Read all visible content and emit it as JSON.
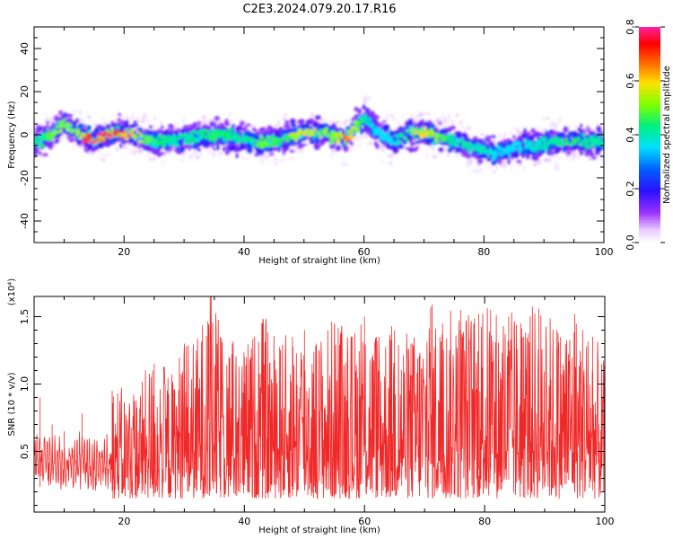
{
  "title": "C2E3.2024.079.20.17.R16",
  "chart_data": [
    {
      "type": "heatmap",
      "xlabel": "Height of straight line (km)",
      "ylabel": "Frequency (Hz)",
      "xlim": [
        5,
        100
      ],
      "ylim": [
        -50,
        50
      ],
      "x_ticks": [
        20,
        40,
        60,
        80,
        100
      ],
      "y_ticks": [
        -40,
        -20,
        0,
        20,
        40
      ],
      "colorbar": {
        "label": "Normalized spectral amplitude",
        "range": [
          0.0,
          0.8
        ],
        "ticks": [
          "0.0",
          "0.2",
          "0.4",
          "0.6",
          "0.8"
        ]
      },
      "description_points": {
        "x": [
          5,
          8,
          10,
          12,
          15,
          17,
          20,
          25,
          30,
          35,
          40,
          43,
          47,
          50,
          55,
          57,
          60,
          62,
          65,
          68,
          70,
          75,
          80,
          82,
          85,
          90,
          95,
          100
        ],
        "center_freq": [
          -3,
          0,
          5,
          1,
          -3,
          0,
          1,
          -3,
          -2,
          0,
          -2,
          -4,
          -1,
          1,
          0,
          -2,
          8,
          2,
          -3,
          1,
          1,
          -3,
          -7,
          -9,
          -6,
          -4,
          -3,
          -3
        ],
        "peak_amplitude": [
          0.4,
          0.5,
          0.55,
          0.5,
          0.8,
          0.85,
          0.7,
          0.45,
          0.4,
          0.45,
          0.4,
          0.5,
          0.45,
          0.6,
          0.5,
          0.7,
          0.4,
          0.35,
          0.35,
          0.55,
          0.6,
          0.4,
          0.4,
          0.35,
          0.35,
          0.4,
          0.45,
          0.4
        ]
      }
    },
    {
      "type": "line",
      "xlabel": "Height of straight line (km)",
      "ylabel": "SNR (10 * v/v)",
      "y_multiplier": "(x10⁴)",
      "xlim": [
        5,
        100
      ],
      "ylim": [
        0.05,
        1.65
      ],
      "x_ticks": [
        20,
        40,
        60,
        80,
        100
      ],
      "y_ticks": [
        0.5,
        1.0,
        1.5
      ],
      "y_tick_labels": [
        "0.5",
        "1.0",
        "1.5"
      ],
      "color": "#f02828",
      "peaks": {
        "x": [
          5,
          6,
          8,
          10,
          13,
          15,
          18,
          20,
          23,
          25,
          28,
          30,
          32,
          34.3,
          36,
          38,
          40,
          43,
          46,
          48,
          50,
          52,
          55,
          58,
          60,
          62,
          65,
          68,
          71,
          73,
          76,
          79,
          81,
          84,
          86,
          89,
          92,
          95,
          98,
          100
        ],
        "y": [
          0.8,
          0.9,
          0.7,
          0.65,
          0.78,
          0.55,
          0.95,
          0.85,
          0.95,
          1.15,
          1.0,
          1.3,
          1.25,
          1.65,
          1.35,
          1.3,
          1.2,
          1.45,
          1.25,
          1.35,
          1.4,
          1.3,
          1.45,
          1.35,
          1.5,
          1.35,
          1.4,
          1.3,
          1.57,
          1.45,
          1.55,
          1.52,
          1.55,
          1.5,
          1.45,
          1.56,
          1.4,
          1.52,
          1.35,
          1.05
        ]
      }
    }
  ]
}
